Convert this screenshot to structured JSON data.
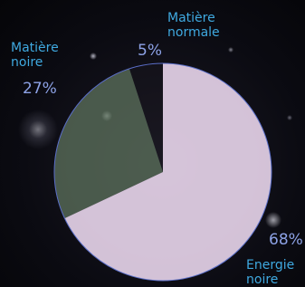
{
  "chart_data": {
    "type": "pie",
    "categories": [
      "Matière normale",
      "Matière noire",
      "Energie noire"
    ],
    "values": [
      5,
      27,
      68
    ],
    "value_labels": [
      "5%",
      "27%",
      "68%"
    ],
    "colors": [
      "#1a1620",
      "#5d735d",
      "#efdcf2"
    ]
  }
}
